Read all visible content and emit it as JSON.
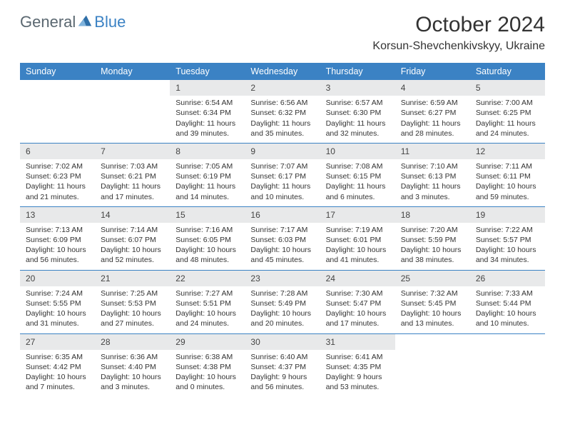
{
  "brand": {
    "text1": "General",
    "text2": "Blue"
  },
  "title": "October 2024",
  "location": "Korsun-Shevchenkivskyy, Ukraine",
  "colors": {
    "accent": "#3b82c4",
    "header_text": "#ffffff",
    "daynum_bg": "#e8e9ea",
    "text": "#333333",
    "logo_gray": "#5a6770"
  },
  "day_names": [
    "Sunday",
    "Monday",
    "Tuesday",
    "Wednesday",
    "Thursday",
    "Friday",
    "Saturday"
  ],
  "weeks": [
    [
      {
        "empty": true
      },
      {
        "empty": true
      },
      {
        "day": "1",
        "sunrise": "Sunrise: 6:54 AM",
        "sunset": "Sunset: 6:34 PM",
        "daylight": "Daylight: 11 hours and 39 minutes."
      },
      {
        "day": "2",
        "sunrise": "Sunrise: 6:56 AM",
        "sunset": "Sunset: 6:32 PM",
        "daylight": "Daylight: 11 hours and 35 minutes."
      },
      {
        "day": "3",
        "sunrise": "Sunrise: 6:57 AM",
        "sunset": "Sunset: 6:30 PM",
        "daylight": "Daylight: 11 hours and 32 minutes."
      },
      {
        "day": "4",
        "sunrise": "Sunrise: 6:59 AM",
        "sunset": "Sunset: 6:27 PM",
        "daylight": "Daylight: 11 hours and 28 minutes."
      },
      {
        "day": "5",
        "sunrise": "Sunrise: 7:00 AM",
        "sunset": "Sunset: 6:25 PM",
        "daylight": "Daylight: 11 hours and 24 minutes."
      }
    ],
    [
      {
        "day": "6",
        "sunrise": "Sunrise: 7:02 AM",
        "sunset": "Sunset: 6:23 PM",
        "daylight": "Daylight: 11 hours and 21 minutes."
      },
      {
        "day": "7",
        "sunrise": "Sunrise: 7:03 AM",
        "sunset": "Sunset: 6:21 PM",
        "daylight": "Daylight: 11 hours and 17 minutes."
      },
      {
        "day": "8",
        "sunrise": "Sunrise: 7:05 AM",
        "sunset": "Sunset: 6:19 PM",
        "daylight": "Daylight: 11 hours and 14 minutes."
      },
      {
        "day": "9",
        "sunrise": "Sunrise: 7:07 AM",
        "sunset": "Sunset: 6:17 PM",
        "daylight": "Daylight: 11 hours and 10 minutes."
      },
      {
        "day": "10",
        "sunrise": "Sunrise: 7:08 AM",
        "sunset": "Sunset: 6:15 PM",
        "daylight": "Daylight: 11 hours and 6 minutes."
      },
      {
        "day": "11",
        "sunrise": "Sunrise: 7:10 AM",
        "sunset": "Sunset: 6:13 PM",
        "daylight": "Daylight: 11 hours and 3 minutes."
      },
      {
        "day": "12",
        "sunrise": "Sunrise: 7:11 AM",
        "sunset": "Sunset: 6:11 PM",
        "daylight": "Daylight: 10 hours and 59 minutes."
      }
    ],
    [
      {
        "day": "13",
        "sunrise": "Sunrise: 7:13 AM",
        "sunset": "Sunset: 6:09 PM",
        "daylight": "Daylight: 10 hours and 56 minutes."
      },
      {
        "day": "14",
        "sunrise": "Sunrise: 7:14 AM",
        "sunset": "Sunset: 6:07 PM",
        "daylight": "Daylight: 10 hours and 52 minutes."
      },
      {
        "day": "15",
        "sunrise": "Sunrise: 7:16 AM",
        "sunset": "Sunset: 6:05 PM",
        "daylight": "Daylight: 10 hours and 48 minutes."
      },
      {
        "day": "16",
        "sunrise": "Sunrise: 7:17 AM",
        "sunset": "Sunset: 6:03 PM",
        "daylight": "Daylight: 10 hours and 45 minutes."
      },
      {
        "day": "17",
        "sunrise": "Sunrise: 7:19 AM",
        "sunset": "Sunset: 6:01 PM",
        "daylight": "Daylight: 10 hours and 41 minutes."
      },
      {
        "day": "18",
        "sunrise": "Sunrise: 7:20 AM",
        "sunset": "Sunset: 5:59 PM",
        "daylight": "Daylight: 10 hours and 38 minutes."
      },
      {
        "day": "19",
        "sunrise": "Sunrise: 7:22 AM",
        "sunset": "Sunset: 5:57 PM",
        "daylight": "Daylight: 10 hours and 34 minutes."
      }
    ],
    [
      {
        "day": "20",
        "sunrise": "Sunrise: 7:24 AM",
        "sunset": "Sunset: 5:55 PM",
        "daylight": "Daylight: 10 hours and 31 minutes."
      },
      {
        "day": "21",
        "sunrise": "Sunrise: 7:25 AM",
        "sunset": "Sunset: 5:53 PM",
        "daylight": "Daylight: 10 hours and 27 minutes."
      },
      {
        "day": "22",
        "sunrise": "Sunrise: 7:27 AM",
        "sunset": "Sunset: 5:51 PM",
        "daylight": "Daylight: 10 hours and 24 minutes."
      },
      {
        "day": "23",
        "sunrise": "Sunrise: 7:28 AM",
        "sunset": "Sunset: 5:49 PM",
        "daylight": "Daylight: 10 hours and 20 minutes."
      },
      {
        "day": "24",
        "sunrise": "Sunrise: 7:30 AM",
        "sunset": "Sunset: 5:47 PM",
        "daylight": "Daylight: 10 hours and 17 minutes."
      },
      {
        "day": "25",
        "sunrise": "Sunrise: 7:32 AM",
        "sunset": "Sunset: 5:45 PM",
        "daylight": "Daylight: 10 hours and 13 minutes."
      },
      {
        "day": "26",
        "sunrise": "Sunrise: 7:33 AM",
        "sunset": "Sunset: 5:44 PM",
        "daylight": "Daylight: 10 hours and 10 minutes."
      }
    ],
    [
      {
        "day": "27",
        "sunrise": "Sunrise: 6:35 AM",
        "sunset": "Sunset: 4:42 PM",
        "daylight": "Daylight: 10 hours and 7 minutes."
      },
      {
        "day": "28",
        "sunrise": "Sunrise: 6:36 AM",
        "sunset": "Sunset: 4:40 PM",
        "daylight": "Daylight: 10 hours and 3 minutes."
      },
      {
        "day": "29",
        "sunrise": "Sunrise: 6:38 AM",
        "sunset": "Sunset: 4:38 PM",
        "daylight": "Daylight: 10 hours and 0 minutes."
      },
      {
        "day": "30",
        "sunrise": "Sunrise: 6:40 AM",
        "sunset": "Sunset: 4:37 PM",
        "daylight": "Daylight: 9 hours and 56 minutes."
      },
      {
        "day": "31",
        "sunrise": "Sunrise: 6:41 AM",
        "sunset": "Sunset: 4:35 PM",
        "daylight": "Daylight: 9 hours and 53 minutes."
      },
      {
        "empty": true
      },
      {
        "empty": true
      }
    ]
  ]
}
